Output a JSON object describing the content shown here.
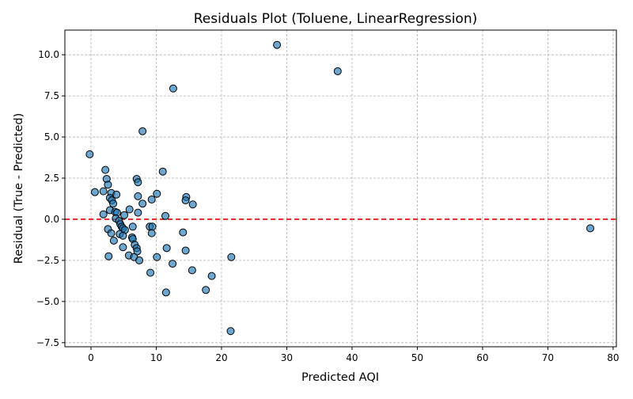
{
  "chart_data": {
    "type": "scatter",
    "title": "Residuals Plot (Toluene, LinearRegression)",
    "xlabel": "Predicted AQI",
    "ylabel": "Residual (True - Predicted)",
    "xlim": [
      -4,
      80.5
    ],
    "ylim": [
      -7.75,
      11.5
    ],
    "xticks": [
      0,
      10,
      20,
      30,
      40,
      50,
      60,
      70,
      80
    ],
    "yticks": [
      -7.5,
      -5.0,
      -2.5,
      0.0,
      2.5,
      5.0,
      7.5,
      10.0
    ],
    "xtick_labels": [
      "0",
      "10",
      "20",
      "30",
      "40",
      "50",
      "60",
      "70",
      "80"
    ],
    "ytick_labels": [
      "−7.5",
      "−5.0",
      "−2.5",
      "0.0",
      "2.5",
      "5.0",
      "7.5",
      "10.0"
    ],
    "grid": true,
    "reference_line": {
      "y": 0,
      "style": "dashed",
      "color": "#e00000"
    },
    "point_color": "#1f77b4",
    "points": [
      {
        "x": 28.5,
        "y": 10.6
      },
      {
        "x": 37.8,
        "y": 9.0
      },
      {
        "x": 12.6,
        "y": 7.95
      },
      {
        "x": 7.9,
        "y": 5.35
      },
      {
        "x": -0.2,
        "y": 3.95
      },
      {
        "x": 2.2,
        "y": 3.0
      },
      {
        "x": 11.0,
        "y": 2.9
      },
      {
        "x": 2.4,
        "y": 2.45
      },
      {
        "x": 7.0,
        "y": 2.45
      },
      {
        "x": 7.2,
        "y": 2.25
      },
      {
        "x": 2.6,
        "y": 2.1
      },
      {
        "x": 0.6,
        "y": 1.65
      },
      {
        "x": 1.9,
        "y": 1.7
      },
      {
        "x": 3.1,
        "y": 1.6
      },
      {
        "x": 3.9,
        "y": 1.5
      },
      {
        "x": 10.1,
        "y": 1.55
      },
      {
        "x": 7.2,
        "y": 1.4
      },
      {
        "x": 14.6,
        "y": 1.35
      },
      {
        "x": 2.9,
        "y": 1.3
      },
      {
        "x": 3.2,
        "y": 1.15
      },
      {
        "x": 9.3,
        "y": 1.2
      },
      {
        "x": 14.5,
        "y": 1.15
      },
      {
        "x": 3.4,
        "y": 0.95
      },
      {
        "x": 7.9,
        "y": 0.95
      },
      {
        "x": 15.6,
        "y": 0.9
      },
      {
        "x": 2.9,
        "y": 0.55
      },
      {
        "x": 5.9,
        "y": 0.6
      },
      {
        "x": 3.7,
        "y": 0.45
      },
      {
        "x": 4.0,
        "y": 0.4
      },
      {
        "x": 7.2,
        "y": 0.4
      },
      {
        "x": 1.9,
        "y": 0.3
      },
      {
        "x": 5.1,
        "y": 0.25
      },
      {
        "x": 11.4,
        "y": 0.2
      },
      {
        "x": 3.8,
        "y": 0.05
      },
      {
        "x": 4.3,
        "y": -0.1
      },
      {
        "x": 4.5,
        "y": -0.3
      },
      {
        "x": 4.7,
        "y": -0.45
      },
      {
        "x": 6.4,
        "y": -0.45
      },
      {
        "x": 4.9,
        "y": -0.55
      },
      {
        "x": 9.0,
        "y": -0.45
      },
      {
        "x": 9.4,
        "y": -0.45
      },
      {
        "x": 5.2,
        "y": -0.65
      },
      {
        "x": 2.6,
        "y": -0.6
      },
      {
        "x": 4.4,
        "y": -0.9
      },
      {
        "x": 3.1,
        "y": -0.85
      },
      {
        "x": 9.3,
        "y": -0.85
      },
      {
        "x": 14.1,
        "y": -0.8
      },
      {
        "x": 4.9,
        "y": -1.0
      },
      {
        "x": 6.3,
        "y": -1.1
      },
      {
        "x": 6.4,
        "y": -1.2
      },
      {
        "x": 3.5,
        "y": -1.3
      },
      {
        "x": 6.7,
        "y": -1.55
      },
      {
        "x": 4.9,
        "y": -1.7
      },
      {
        "x": 7.0,
        "y": -1.75
      },
      {
        "x": 11.6,
        "y": -1.75
      },
      {
        "x": 7.1,
        "y": -1.95
      },
      {
        "x": 14.5,
        "y": -1.9
      },
      {
        "x": 2.7,
        "y": -2.25
      },
      {
        "x": 5.8,
        "y": -2.2
      },
      {
        "x": 6.6,
        "y": -2.3
      },
      {
        "x": 10.1,
        "y": -2.3
      },
      {
        "x": 21.5,
        "y": -2.3
      },
      {
        "x": 7.4,
        "y": -2.5
      },
      {
        "x": 12.5,
        "y": -2.7
      },
      {
        "x": 15.5,
        "y": -3.1
      },
      {
        "x": 9.1,
        "y": -3.25
      },
      {
        "x": 18.5,
        "y": -3.45
      },
      {
        "x": 17.6,
        "y": -4.3
      },
      {
        "x": 11.5,
        "y": -4.45
      },
      {
        "x": 21.4,
        "y": -6.8
      },
      {
        "x": 76.5,
        "y": -0.55
      }
    ]
  }
}
